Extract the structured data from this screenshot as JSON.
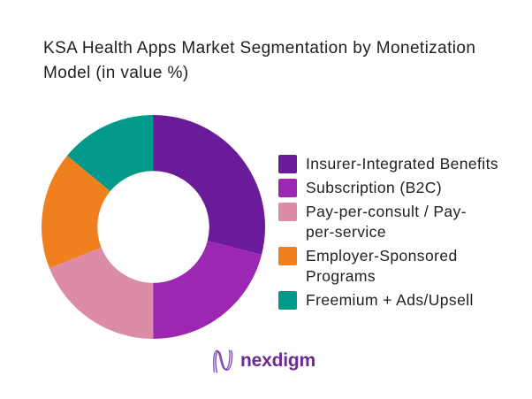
{
  "title": "KSA Health Apps Market Segmentation by Monetization Model (in value %)",
  "brand": {
    "name": "nexdigm",
    "logo_icon": "wavy-n-monogram",
    "text_color": "#6d2a8f"
  },
  "chart_data": {
    "type": "pie",
    "subtype": "donut",
    "title": "KSA Health Apps Market Segmentation by Monetization Model (in value %)",
    "unit": "value %",
    "legend_position": "right",
    "data_labels_shown": false,
    "start_angle_deg": 0,
    "direction": "clockwise",
    "inner_radius_ratio": 0.5,
    "segments": [
      {
        "label": "Insurer-Integrated Benefits",
        "value": 29,
        "color": "#6A1B9A"
      },
      {
        "label": "Subscription (B2C)",
        "value": 21,
        "color": "#9C27B0"
      },
      {
        "label": "Pay-per-consult / Pay-per-service",
        "value": 19,
        "color": "#DC8CA6"
      },
      {
        "label": "Employer-Sponsored Programs",
        "value": 17,
        "color": "#F0801E"
      },
      {
        "label": "Freemium + Ads/Upsell",
        "value": 14,
        "color": "#00998A"
      }
    ]
  }
}
